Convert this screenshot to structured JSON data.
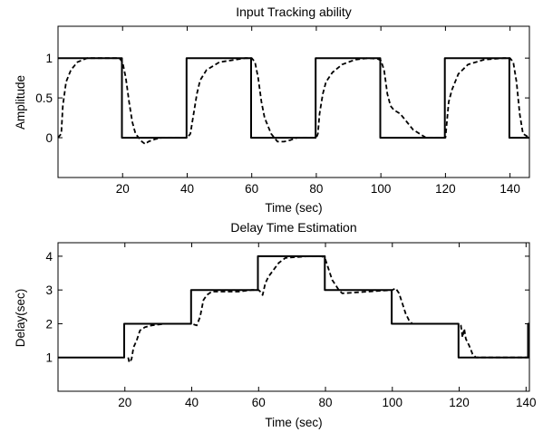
{
  "chart_data": [
    {
      "type": "line",
      "title": "Input Tracking ability",
      "xlabel": "Time (sec)",
      "ylabel": "Amplitude",
      "xlim": [
        0,
        146
      ],
      "ylim": [
        -0.5,
        1.4
      ],
      "xticks": [
        20,
        40,
        60,
        80,
        100,
        120,
        140
      ],
      "yticks": [
        0,
        0.5,
        1
      ],
      "ytick_labels": [
        "0",
        "0.5",
        "1"
      ],
      "grid": false,
      "series": [
        {
          "style": "solid",
          "points": [
            [
              0,
              1
            ],
            [
              19.8,
              1
            ],
            [
              19.8,
              0
            ],
            [
              39.8,
              0
            ],
            [
              39.8,
              1
            ],
            [
              59.8,
              1
            ],
            [
              59.8,
              0
            ],
            [
              79.8,
              0
            ],
            [
              79.8,
              1
            ],
            [
              99.8,
              1
            ],
            [
              99.8,
              0
            ],
            [
              119.8,
              0
            ],
            [
              119.8,
              1
            ],
            [
              139.8,
              1
            ],
            [
              139.8,
              0
            ],
            [
              146,
              0
            ]
          ]
        },
        {
          "style": "dashed",
          "points": [
            [
              0,
              0
            ],
            [
              1,
              0.05
            ],
            [
              1.5,
              0.4
            ],
            [
              2.5,
              0.7
            ],
            [
              4,
              0.85
            ],
            [
              6,
              0.95
            ],
            [
              9,
              1
            ],
            [
              19,
              1
            ],
            [
              20,
              0.95
            ],
            [
              21,
              0.75
            ],
            [
              22,
              0.45
            ],
            [
              23,
              0.2
            ],
            [
              24,
              0.05
            ],
            [
              25,
              0
            ],
            [
              26,
              -0.05
            ],
            [
              27,
              -0.08
            ],
            [
              28,
              -0.05
            ],
            [
              30,
              -0.02
            ],
            [
              32,
              0
            ],
            [
              40,
              0
            ],
            [
              41,
              0.05
            ],
            [
              42,
              0.3
            ],
            [
              43,
              0.55
            ],
            [
              44,
              0.72
            ],
            [
              46,
              0.85
            ],
            [
              50,
              0.95
            ],
            [
              55,
              0.98
            ],
            [
              58,
              1
            ],
            [
              60,
              1
            ],
            [
              61,
              0.95
            ],
            [
              62,
              0.75
            ],
            [
              63,
              0.45
            ],
            [
              64,
              0.25
            ],
            [
              65,
              0.15
            ],
            [
              66,
              0.05
            ],
            [
              67,
              0
            ],
            [
              68,
              -0.05
            ],
            [
              70,
              -0.05
            ],
            [
              72,
              -0.03
            ],
            [
              74,
              0
            ],
            [
              80,
              0
            ],
            [
              80.5,
              0.05
            ],
            [
              81,
              0.3
            ],
            [
              82,
              0.55
            ],
            [
              83,
              0.7
            ],
            [
              85,
              0.82
            ],
            [
              88,
              0.92
            ],
            [
              92,
              0.98
            ],
            [
              96,
              1
            ],
            [
              99,
              0.99
            ],
            [
              100,
              0.97
            ],
            [
              101,
              0.85
            ],
            [
              102,
              0.55
            ],
            [
              103,
              0.4
            ],
            [
              104,
              0.35
            ],
            [
              106,
              0.3
            ],
            [
              108,
              0.2
            ],
            [
              110,
              0.1
            ],
            [
              112,
              0.05
            ],
            [
              114,
              0
            ],
            [
              119,
              0
            ],
            [
              120,
              0
            ],
            [
              121,
              0.45
            ],
            [
              122,
              0.6
            ],
            [
              124,
              0.8
            ],
            [
              127,
              0.92
            ],
            [
              132,
              0.98
            ],
            [
              138,
              1
            ],
            [
              140,
              1
            ],
            [
              141,
              0.95
            ],
            [
              142,
              0.7
            ],
            [
              143,
              0.3
            ],
            [
              144,
              0.05
            ],
            [
              146,
              0
            ]
          ]
        }
      ]
    },
    {
      "type": "line",
      "title": "Delay Time Estimation",
      "xlabel": "Time (sec)",
      "ylabel": "Delay(sec)",
      "xlim": [
        0,
        141
      ],
      "ylim": [
        0,
        4.4
      ],
      "xticks": [
        20,
        40,
        60,
        80,
        100,
        120,
        140
      ],
      "yticks": [
        1,
        2,
        3,
        4
      ],
      "grid": false,
      "series": [
        {
          "style": "solid",
          "points": [
            [
              0,
              1
            ],
            [
              19.8,
              1
            ],
            [
              19.8,
              2
            ],
            [
              39.8,
              2
            ],
            [
              39.8,
              3
            ],
            [
              59.8,
              3
            ],
            [
              59.8,
              4
            ],
            [
              79.8,
              4
            ],
            [
              79.8,
              3
            ],
            [
              99.8,
              3
            ],
            [
              99.8,
              2
            ],
            [
              119.8,
              2
            ],
            [
              119.8,
              1
            ],
            [
              140.6,
              1
            ],
            [
              140.6,
              2
            ],
            [
              141,
              2
            ]
          ]
        },
        {
          "style": "dashed",
          "points": [
            [
              21,
              1
            ],
            [
              21.3,
              0.85
            ],
            [
              22,
              0.95
            ],
            [
              22.6,
              1.3
            ],
            [
              23.5,
              1.5
            ],
            [
              24.5,
              1.8
            ],
            [
              26,
              1.9
            ],
            [
              28,
              1.95
            ],
            [
              32,
              2
            ],
            [
              40,
              2
            ],
            [
              41.5,
              1.95
            ],
            [
              42.5,
              2.2
            ],
            [
              43.5,
              2.7
            ],
            [
              44.5,
              2.85
            ],
            [
              46,
              2.95
            ],
            [
              54,
              2.95
            ],
            [
              58,
              3
            ],
            [
              60,
              3
            ],
            [
              60.5,
              2.95
            ],
            [
              61.2,
              2.85
            ],
            [
              62,
              3.2
            ],
            [
              63,
              3.4
            ],
            [
              64.5,
              3.6
            ],
            [
              66,
              3.8
            ],
            [
              68,
              3.95
            ],
            [
              75,
              4
            ],
            [
              79,
              4
            ],
            [
              80,
              3.9
            ],
            [
              81,
              3.6
            ],
            [
              82,
              3.3
            ],
            [
              83,
              3.15
            ],
            [
              84,
              3
            ],
            [
              85,
              2.9
            ],
            [
              100,
              3
            ],
            [
              101,
              3.05
            ],
            [
              102,
              2.9
            ],
            [
              103,
              2.6
            ],
            [
              103.5,
              2.45
            ],
            [
              104,
              2.3
            ],
            [
              105,
              2.1
            ],
            [
              106,
              2
            ],
            [
              118,
              2
            ],
            [
              120,
              2
            ],
            [
              120.5,
              1.95
            ],
            [
              121,
              1.6
            ],
            [
              121.5,
              1.85
            ],
            [
              122,
              1.55
            ],
            [
              123,
              1.35
            ],
            [
              124,
              1.1
            ],
            [
              125,
              1
            ],
            [
              141,
              1
            ]
          ]
        }
      ]
    }
  ]
}
